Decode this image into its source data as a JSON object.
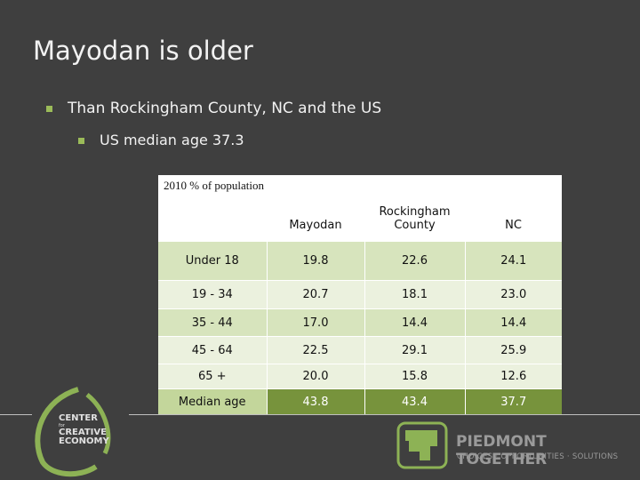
{
  "title": "Mayodan is older",
  "bullets": [
    "Than Rockingham County, NC and the US",
    "US median age 37.3"
  ],
  "table": {
    "header": [
      "2010 % of population",
      "Mayodan",
      "Rockingham County",
      "NC"
    ],
    "rows": [
      [
        "Under 18",
        "19.8",
        "22.6",
        "24.1"
      ],
      [
        "19 - 34",
        "20.7",
        "18.1",
        "23.0"
      ],
      [
        "35 - 44",
        "17.0",
        "14.4",
        "14.4"
      ],
      [
        "45 - 64",
        "22.5",
        "29.1",
        "25.9"
      ],
      [
        "65 +",
        "20.0",
        "15.8",
        "12.6"
      ],
      [
        "Median age",
        "43.8",
        "43.4",
        "37.7"
      ]
    ]
  },
  "logos": {
    "left": [
      "CENTER",
      "for",
      "CREATIVE",
      "ECONOMY"
    ],
    "right": {
      "name": "PIEDMONT TOGETHER",
      "tagline": "CHOICES · OPPORTUNITIES · SOLUTIONS"
    }
  }
}
